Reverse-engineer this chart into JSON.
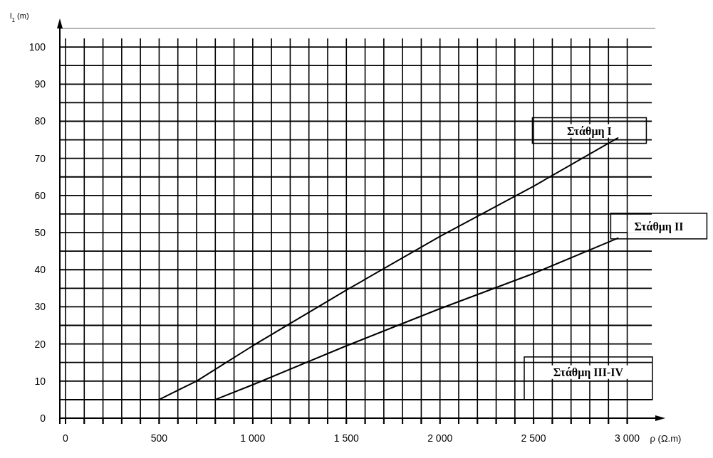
{
  "chart_data": {
    "type": "line",
    "xlabel": "ρ (Ω.m)",
    "ylabel": "l$_{1}$ (m)",
    "series": [
      {
        "name": "Στάθμη I",
        "color": "#000000",
        "x": [
          500,
          700,
          1000,
          1500,
          2000,
          2500,
          2950
        ],
        "values": [
          5,
          10,
          19.5,
          34.5,
          49,
          62.5,
          75.5
        ]
      },
      {
        "name": "Στάθμη II",
        "color": "#000000",
        "x": [
          800,
          1000,
          1500,
          2000,
          2500,
          2950
        ],
        "values": [
          5,
          9,
          19.5,
          29.5,
          39,
          48.5
        ]
      },
      {
        "name": "Στάθμη III-IV",
        "color": "#000000",
        "x": [
          0,
          3000
        ],
        "values": [
          5,
          5
        ]
      }
    ],
    "xlim": [
      0,
      3150
    ],
    "ylim": [
      0,
      105
    ],
    "xticks": [
      0,
      {
        "value": 100,
        "label": null
      },
      {
        "value": 200,
        "label": null
      },
      {
        "value": 300,
        "label": null
      },
      {
        "value": 400,
        "label": null
      },
      500,
      {
        "value": 600,
        "label": null
      },
      {
        "value": 700,
        "label": null
      },
      {
        "value": 800,
        "label": null
      },
      {
        "value": 900,
        "label": null
      },
      {
        "value": 1000,
        "label": "1 000"
      },
      {
        "value": 1100,
        "label": null
      },
      {
        "value": 1200,
        "label": null
      },
      {
        "value": 1300,
        "label": null
      },
      {
        "value": 1400,
        "label": null
      },
      {
        "value": 1500,
        "label": "1 500"
      },
      {
        "value": 1600,
        "label": null
      },
      {
        "value": 1700,
        "label": null
      },
      {
        "value": 1800,
        "label": null
      },
      {
        "value": 1900,
        "label": null
      },
      {
        "value": 2000,
        "label": "2 000"
      },
      {
        "value": 2100,
        "label": null
      },
      {
        "value": 2200,
        "label": null
      },
      {
        "value": 2300,
        "label": null
      },
      {
        "value": 2400,
        "label": null
      },
      {
        "value": 2500,
        "label": "2 500"
      },
      {
        "value": 2600,
        "label": null
      },
      {
        "value": 2700,
        "label": null
      },
      {
        "value": 2800,
        "label": null
      },
      {
        "value": 2900,
        "label": null
      },
      {
        "value": 3000,
        "label": "3 000"
      }
    ],
    "yticks": [
      0,
      {
        "value": 5,
        "label": null
      },
      10,
      {
        "value": 15,
        "label": null
      },
      20,
      {
        "value": 25,
        "label": null
      },
      30,
      {
        "value": 35,
        "label": null
      },
      40,
      {
        "value": 45,
        "label": null
      },
      50,
      {
        "value": 55,
        "label": null
      },
      60,
      {
        "value": 65,
        "label": null
      },
      70,
      {
        "value": 75,
        "label": null
      },
      80,
      {
        "value": 85,
        "label": null
      },
      90,
      {
        "value": 95,
        "label": null
      },
      100
    ],
    "grid": true,
    "marker": "none",
    "line_style": "solid"
  }
}
